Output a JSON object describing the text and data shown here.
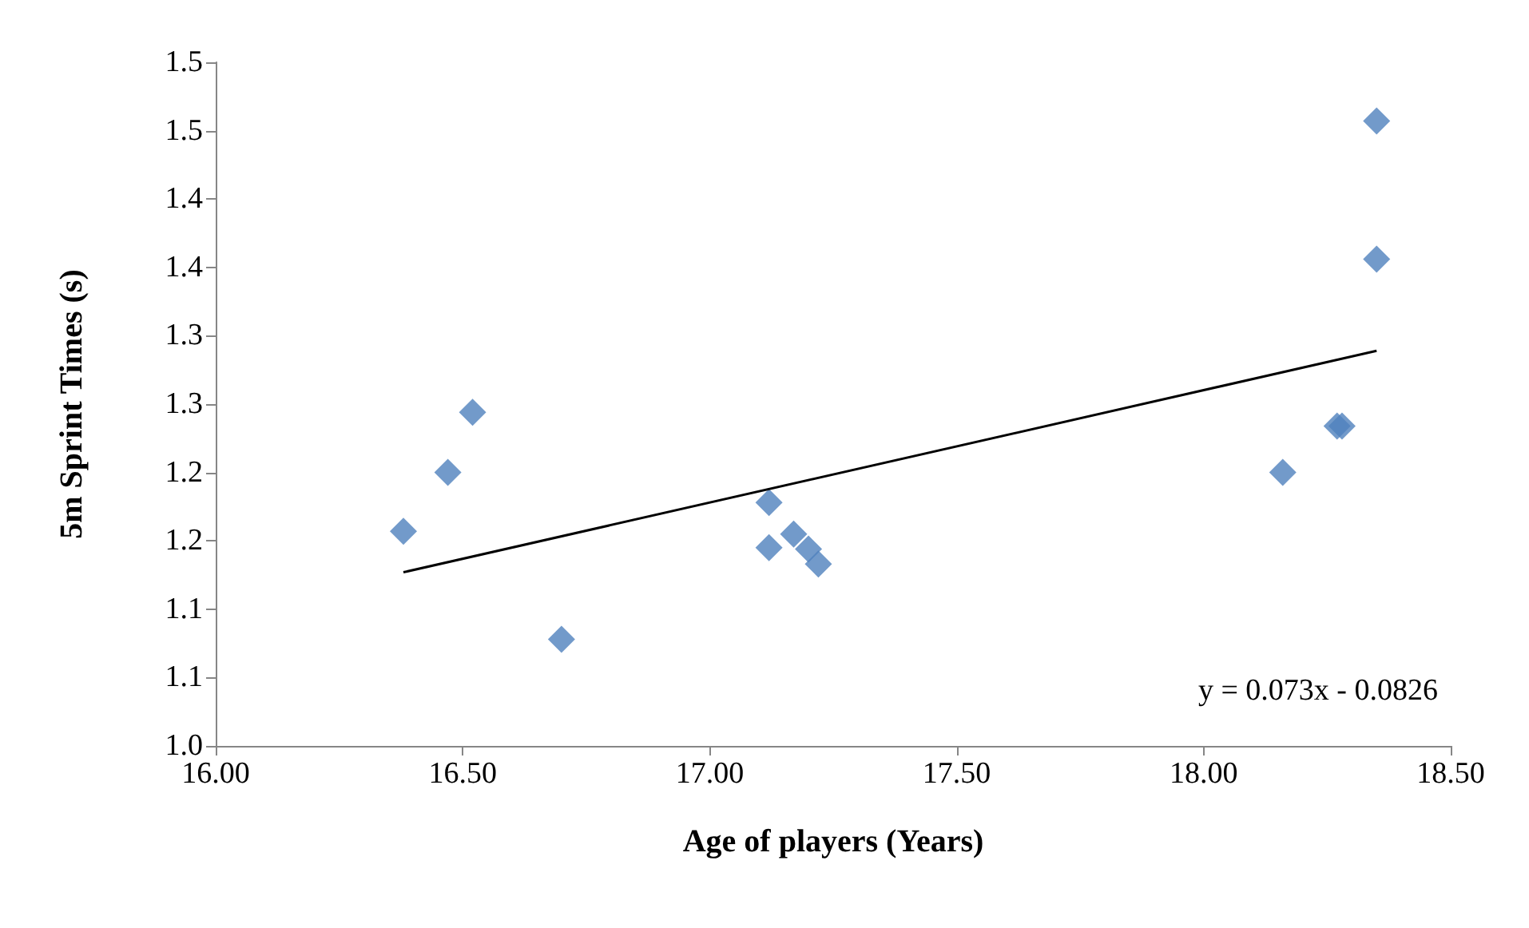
{
  "chart_data": {
    "type": "scatter",
    "xlabel": "Age of players (Years)",
    "ylabel": "5m Sprint Times (s)",
    "xlim": [
      16,
      18.5
    ],
    "xticks": [
      {
        "value": 16,
        "label": "16.00"
      },
      {
        "value": 16.5,
        "label": "16.50"
      },
      {
        "value": 17,
        "label": "17.00"
      },
      {
        "value": 17.5,
        "label": "17.50"
      },
      {
        "value": 18,
        "label": "18.00"
      },
      {
        "value": 18.5,
        "label": "18.50"
      }
    ],
    "ylim": [
      1,
      1.5
    ],
    "yticks": [
      {
        "value": 1,
        "label": "1.0"
      },
      {
        "value": 1.05,
        "label": "1.1"
      },
      {
        "value": 1.1,
        "label": "1.1"
      },
      {
        "value": 1.15,
        "label": "1.2"
      },
      {
        "value": 1.2,
        "label": "1.2"
      },
      {
        "value": 1.25,
        "label": "1.3"
      },
      {
        "value": 1.3,
        "label": "1.3"
      },
      {
        "value": 1.35,
        "label": "1.4"
      },
      {
        "value": 1.4,
        "label": "1.4"
      },
      {
        "value": 1.45,
        "label": "1.5"
      },
      {
        "value": 1.5,
        "label": "1.5"
      }
    ],
    "grid": false,
    "series": [
      {
        "marker": "diamond",
        "color": "#4f81bd",
        "x": [
          16.38,
          16.47,
          16.52,
          16.7,
          17.12,
          17.12,
          17.17,
          17.2,
          17.22,
          18.16,
          18.27,
          18.28,
          18.35,
          18.35
        ],
        "values": [
          1.157,
          1.2,
          1.244,
          1.078,
          1.178,
          1.145,
          1.155,
          1.144,
          1.133,
          1.2,
          1.234,
          1.234,
          1.356,
          1.457
        ]
      },
      {
        "type": "line",
        "marker": "none",
        "color": "#000000",
        "x": [
          16.38,
          18.35
        ],
        "values": [
          1.127,
          1.289
        ]
      }
    ],
    "annotations": [
      "y = 0.073x - 0.0826"
    ]
  }
}
